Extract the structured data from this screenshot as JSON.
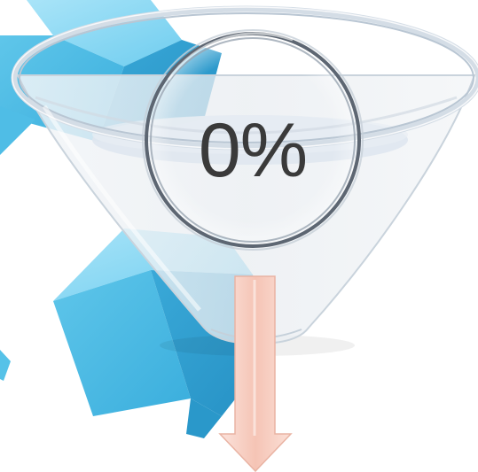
{
  "funnel": {
    "percent_label": "0%",
    "percent_value": 0
  },
  "colors": {
    "cube_light": "#8ed8f3",
    "cube_mid": "#4fbde6",
    "cube_dark": "#2b9fd0",
    "funnel_glass": "#e6ecf2",
    "funnel_rim": "#c7d4e0",
    "magnifier_ring": "#5a6470",
    "arrow_fill": "#f7c9bd",
    "text": "#3a3a3a"
  },
  "icons": [
    "cube-shape",
    "funnel-shape",
    "magnifier-ring",
    "down-arrow-icon"
  ]
}
